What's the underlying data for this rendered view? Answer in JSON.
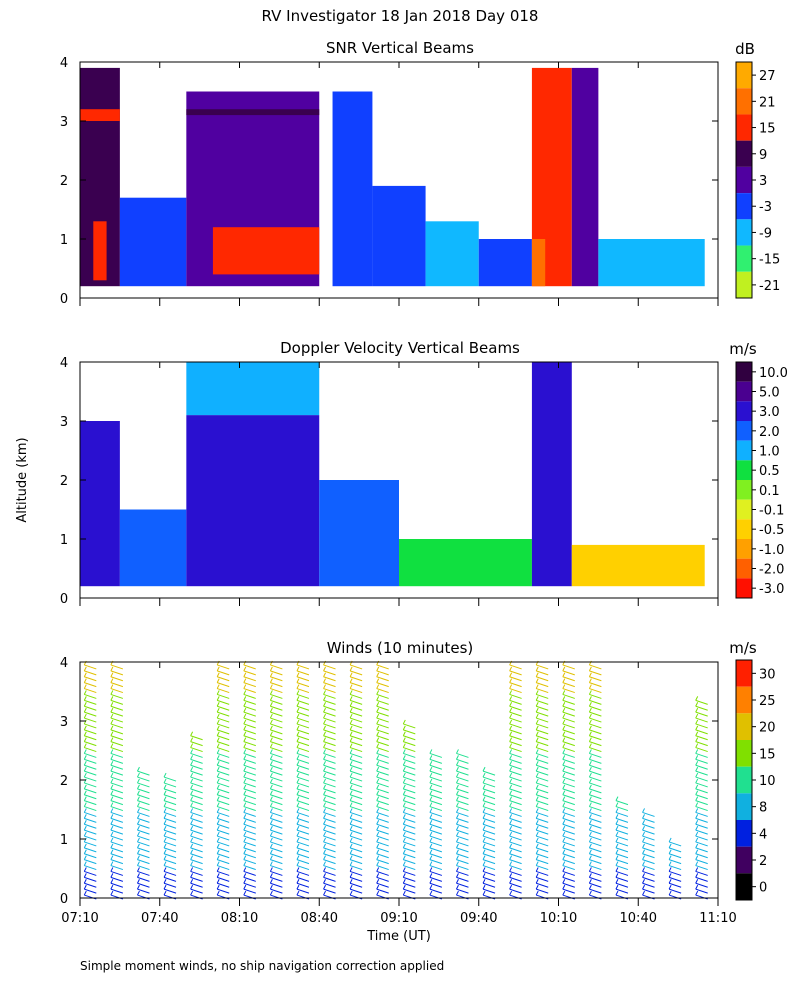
{
  "figure": {
    "title": "RV Investigator  18 Jan 2018 Day 018",
    "ylabel": "Altitude (km)",
    "xlabel": "Time (UT)",
    "footnote": "Simple moment winds, no ship navigation correction applied"
  },
  "chart_data": [
    {
      "type": "heatmap",
      "title": "SNR Vertical Beams",
      "colorbar_unit": "dB",
      "colorbar_labels": [
        "27",
        "21",
        "15",
        "9",
        "3",
        "-3",
        "-9",
        "-15",
        "-21"
      ],
      "colorbar_colors": [
        "#ffaa00",
        "#ff7000",
        "#ff2800",
        "#3a0050",
        "#5000a0",
        "#1040ff",
        "#10b8ff",
        "#30f070",
        "#c0f020"
      ],
      "xlim": [
        "07:10",
        "11:10"
      ],
      "ylim": [
        0,
        4
      ],
      "yticks": [
        0,
        1,
        2,
        3,
        4
      ],
      "grid": false,
      "data": [
        {
          "x": [
            "07:10",
            "07:25"
          ],
          "y": [
            0.2,
            3.9
          ],
          "category": "9"
        },
        {
          "x": [
            "07:10",
            "07:25"
          ],
          "y": [
            3.0,
            3.2
          ],
          "category": "15"
        },
        {
          "x": [
            "07:15",
            "07:20"
          ],
          "y": [
            0.3,
            1.3
          ],
          "category": "15"
        },
        {
          "x": [
            "07:25",
            "07:50"
          ],
          "y": [
            0.2,
            1.7
          ],
          "category": "-3"
        },
        {
          "x": [
            "07:50",
            "08:40"
          ],
          "y": [
            0.2,
            3.5
          ],
          "category": "3"
        },
        {
          "x": [
            "07:50",
            "08:40"
          ],
          "y": [
            3.1,
            3.2
          ],
          "category": "9"
        },
        {
          "x": [
            "08:00",
            "08:40"
          ],
          "y": [
            0.4,
            1.2
          ],
          "category": "15"
        },
        {
          "x": [
            "08:45",
            "09:00"
          ],
          "y": [
            0.2,
            3.5
          ],
          "category": "-3"
        },
        {
          "x": [
            "09:00",
            "09:20"
          ],
          "y": [
            0.2,
            1.9
          ],
          "category": "-3"
        },
        {
          "x": [
            "09:20",
            "09:40"
          ],
          "y": [
            0.2,
            1.3
          ],
          "category": "-9"
        },
        {
          "x": [
            "09:40",
            "10:00"
          ],
          "y": [
            0.2,
            1.0
          ],
          "category": "-3"
        },
        {
          "x": [
            "10:00",
            "10:15"
          ],
          "y": [
            0.2,
            3.9
          ],
          "category": "15"
        },
        {
          "x": [
            "10:00",
            "10:05"
          ],
          "y": [
            0.2,
            1.0
          ],
          "category": "21"
        },
        {
          "x": [
            "10:15",
            "10:25"
          ],
          "y": [
            0.2,
            3.9
          ],
          "category": "3"
        },
        {
          "x": [
            "10:25",
            "11:05"
          ],
          "y": [
            0.2,
            1.0
          ],
          "category": "-9"
        }
      ]
    },
    {
      "type": "heatmap",
      "title": "Doppler Velocity Vertical Beams",
      "colorbar_unit": "m/s",
      "colorbar_labels": [
        "10.0",
        "5.0",
        "3.0",
        "2.0",
        "1.0",
        "0.5",
        "0.1",
        "-0.1",
        "-0.5",
        "-1.0",
        "-2.0",
        "-3.0"
      ],
      "colorbar_colors": [
        "#300040",
        "#4a0090",
        "#2a10d0",
        "#1060ff",
        "#10b0ff",
        "#10e040",
        "#80f020",
        "#e0f020",
        "#ffd000",
        "#ffa000",
        "#ff6000",
        "#ff1000"
      ],
      "xlim": [
        "07:10",
        "11:10"
      ],
      "ylim": [
        0,
        4
      ],
      "yticks": [
        0,
        1,
        2,
        3,
        4
      ],
      "grid": false,
      "data": [
        {
          "x": [
            "07:10",
            "07:25"
          ],
          "y": [
            0.2,
            3.0
          ],
          "category": "3.0"
        },
        {
          "x": [
            "07:25",
            "07:50"
          ],
          "y": [
            0.2,
            1.5
          ],
          "category": "2.0"
        },
        {
          "x": [
            "07:50",
            "08:40"
          ],
          "y": [
            0.2,
            3.1
          ],
          "category": "3.0"
        },
        {
          "x": [
            "07:50",
            "08:40"
          ],
          "y": [
            3.1,
            4.0
          ],
          "category": "1.0"
        },
        {
          "x": [
            "08:40",
            "09:10"
          ],
          "y": [
            0.2,
            2.0
          ],
          "category": "2.0"
        },
        {
          "x": [
            "09:10",
            "10:00"
          ],
          "y": [
            0.2,
            1.0
          ],
          "category": "0.5"
        },
        {
          "x": [
            "10:00",
            "10:15"
          ],
          "y": [
            0.2,
            4.0
          ],
          "category": "3.0"
        },
        {
          "x": [
            "10:15",
            "11:05"
          ],
          "y": [
            0.2,
            0.9
          ],
          "category": "-0.5"
        }
      ]
    },
    {
      "type": "scatter",
      "title": "Winds (10 minutes)",
      "colorbar_unit": "m/s",
      "colorbar_labels": [
        "30",
        "25",
        "20",
        "15",
        "10",
        "8",
        "4",
        "2",
        "0"
      ],
      "colorbar_colors": [
        "#ff2000",
        "#ff8000",
        "#e0c000",
        "#80e000",
        "#20e090",
        "#10b0e0",
        "#0020e0",
        "#400060",
        "#000000"
      ],
      "xlim": [
        "07:10",
        "11:10"
      ],
      "ylim": [
        0,
        4
      ],
      "yticks": [
        0,
        1,
        2,
        3,
        4
      ],
      "grid": false,
      "series": [
        {
          "x": [
            "07:15",
            "07:25",
            "07:35",
            "07:45",
            "07:55",
            "08:05",
            "08:15",
            "08:25",
            "08:35",
            "08:45",
            "08:55",
            "09:05",
            "09:15",
            "09:25",
            "09:35",
            "09:45",
            "09:55",
            "10:05",
            "10:15",
            "10:25",
            "10:35",
            "10:45",
            "10:55",
            "11:05"
          ],
          "ymax": [
            4.0,
            4.0,
            2.2,
            2.1,
            2.8,
            4.0,
            4.0,
            4.0,
            4.0,
            4.0,
            4.0,
            4.0,
            3.0,
            2.5,
            2.5,
            2.2,
            4.0,
            4.0,
            4.0,
            4.0,
            1.7,
            1.5,
            1.0,
            3.4
          ]
        }
      ]
    }
  ],
  "x_ticks": [
    "07:10",
    "07:40",
    "08:10",
    "08:40",
    "09:10",
    "09:40",
    "10:10",
    "10:40",
    "11:10"
  ]
}
